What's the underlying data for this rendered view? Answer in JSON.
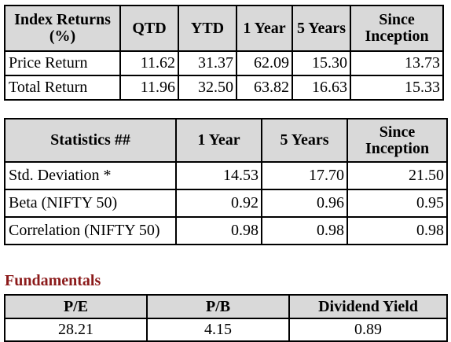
{
  "index_returns": {
    "headers": [
      "Index Returns (%)",
      "QTD",
      "YTD",
      "1 Year",
      "5 Years",
      "Since Inception"
    ],
    "rows": [
      {
        "label": "Price Return",
        "values": [
          "11.62",
          "31.37",
          "62.09",
          "15.30",
          "13.73"
        ]
      },
      {
        "label": "Total Return",
        "values": [
          "11.96",
          "32.50",
          "63.82",
          "16.63",
          "15.33"
        ]
      }
    ]
  },
  "statistics": {
    "headers": [
      "Statistics ##",
      "1 Year",
      "5 Years",
      "Since Inception"
    ],
    "rows": [
      {
        "label": "Std. Deviation *",
        "values": [
          "14.53",
          "17.70",
          "21.50"
        ]
      },
      {
        "label": "Beta (NIFTY 50)",
        "values": [
          "0.92",
          "0.96",
          "0.95"
        ]
      },
      {
        "label": "Correlation (NIFTY 50)",
        "values": [
          "0.98",
          "0.98",
          "0.98"
        ]
      }
    ]
  },
  "fundamentals": {
    "title": "Fundamentals",
    "title_color": "#8b1a1a",
    "headers": [
      "P/E",
      "P/B",
      "Dividend Yield"
    ],
    "values": [
      "28.21",
      "4.15",
      "0.89"
    ]
  },
  "colors": {
    "header_bg": "#d9d9d9",
    "border": "#000000"
  }
}
